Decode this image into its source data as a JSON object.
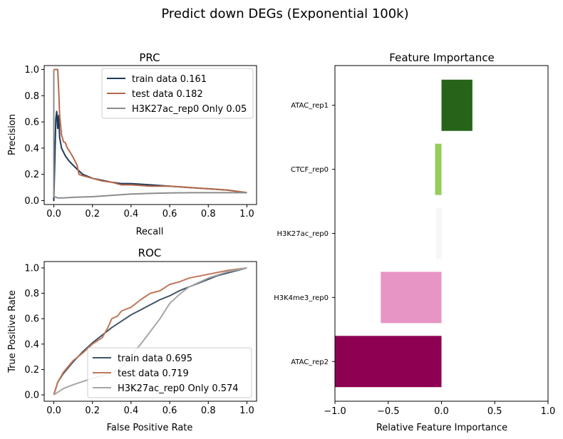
{
  "suptitle": "Predict down DEGs (Exponential 100k)",
  "chart_data": [
    {
      "type": "line",
      "title": "PRC",
      "xlabel": "Recall",
      "ylabel": "Precision",
      "xlim": [
        -0.05,
        1.05
      ],
      "ylim": [
        -0.03,
        1.03
      ],
      "xticks": [
        0.0,
        0.2,
        0.4,
        0.6,
        0.8,
        1.0
      ],
      "xtick_labels": [
        "0.0",
        "0.2",
        "0.4",
        "0.6",
        "0.8",
        "1.0"
      ],
      "yticks": [
        0.0,
        0.2,
        0.4,
        0.6,
        0.8,
        1.0
      ],
      "ytick_labels": [
        "0.0",
        "0.2",
        "0.4",
        "0.6",
        "0.8",
        "1.0"
      ],
      "legend_position": "upper-right",
      "grid": false,
      "series": [
        {
          "name": "train data 0.161",
          "color": "#1f3a5a",
          "x": [
            0.0,
            0.0,
            0.005,
            0.01,
            0.015,
            0.02,
            0.025,
            0.03,
            0.04,
            0.05,
            0.06,
            0.08,
            0.1,
            0.12,
            0.15,
            0.2,
            0.25,
            0.3,
            0.35,
            0.4,
            0.5,
            0.6,
            0.7,
            0.8,
            0.9,
            1.0
          ],
          "y": [
            1.0,
            0.0,
            0.3,
            0.62,
            0.68,
            0.55,
            0.65,
            0.48,
            0.4,
            0.37,
            0.34,
            0.3,
            0.27,
            0.24,
            0.2,
            0.17,
            0.155,
            0.14,
            0.13,
            0.13,
            0.12,
            0.11,
            0.1,
            0.09,
            0.08,
            0.06
          ]
        },
        {
          "name": "test data 0.182",
          "color": "#b5694a",
          "x": [
            0.0,
            0.0,
            0.005,
            0.01,
            0.02,
            0.025,
            0.03,
            0.04,
            0.05,
            0.06,
            0.07,
            0.08,
            0.1,
            0.12,
            0.13,
            0.15,
            0.2,
            0.25,
            0.3,
            0.35,
            0.4,
            0.5,
            0.6,
            0.7,
            0.8,
            0.9,
            1.0
          ],
          "y": [
            1.0,
            1.0,
            1.0,
            1.0,
            1.0,
            0.85,
            0.65,
            0.5,
            0.45,
            0.44,
            0.4,
            0.38,
            0.33,
            0.27,
            0.2,
            0.19,
            0.17,
            0.15,
            0.14,
            0.12,
            0.12,
            0.11,
            0.11,
            0.1,
            0.09,
            0.08,
            0.06
          ]
        },
        {
          "name": "H3K27ac_rep0 Only 0.05",
          "color": "#8c8c8c",
          "x": [
            0.0,
            0.0,
            0.005,
            0.02,
            0.05,
            0.1,
            0.2,
            0.3,
            0.4,
            0.5,
            0.6,
            0.7,
            0.8,
            0.9,
            1.0
          ],
          "y": [
            1.0,
            0.03,
            0.03,
            0.02,
            0.02,
            0.025,
            0.03,
            0.04,
            0.05,
            0.055,
            0.058,
            0.06,
            0.06,
            0.06,
            0.06
          ]
        }
      ]
    },
    {
      "type": "line",
      "title": "ROC",
      "xlabel": "False Positive Rate",
      "ylabel": "True Positive Rate",
      "xlim": [
        -0.05,
        1.05
      ],
      "ylim": [
        -0.05,
        1.05
      ],
      "xticks": [
        0.0,
        0.2,
        0.4,
        0.6,
        0.8,
        1.0
      ],
      "xtick_labels": [
        "0.0",
        "0.2",
        "0.4",
        "0.6",
        "0.8",
        "1.0"
      ],
      "yticks": [
        0.0,
        0.2,
        0.4,
        0.6,
        0.8,
        1.0
      ],
      "ytick_labels": [
        "0.0",
        "0.2",
        "0.4",
        "0.6",
        "0.8",
        "1.0"
      ],
      "legend_position": "lower-right",
      "grid": false,
      "series": [
        {
          "name": "train data 0.695",
          "color": "#3f5566",
          "x": [
            0.0,
            0.02,
            0.05,
            0.1,
            0.15,
            0.2,
            0.25,
            0.3,
            0.35,
            0.4,
            0.45,
            0.5,
            0.55,
            0.6,
            0.65,
            0.7,
            0.75,
            0.8,
            0.85,
            0.9,
            0.95,
            1.0
          ],
          "y": [
            0.0,
            0.1,
            0.17,
            0.26,
            0.34,
            0.41,
            0.47,
            0.53,
            0.58,
            0.63,
            0.67,
            0.71,
            0.75,
            0.78,
            0.82,
            0.85,
            0.88,
            0.91,
            0.94,
            0.96,
            0.98,
            1.0
          ]
        },
        {
          "name": "test data 0.719",
          "color": "#c0785a",
          "x": [
            0.0,
            0.02,
            0.05,
            0.1,
            0.15,
            0.2,
            0.25,
            0.28,
            0.3,
            0.33,
            0.35,
            0.4,
            0.45,
            0.5,
            0.55,
            0.6,
            0.65,
            0.7,
            0.8,
            0.9,
            1.0
          ],
          "y": [
            0.0,
            0.1,
            0.18,
            0.27,
            0.33,
            0.4,
            0.45,
            0.53,
            0.6,
            0.62,
            0.66,
            0.69,
            0.75,
            0.8,
            0.82,
            0.87,
            0.89,
            0.92,
            0.95,
            0.98,
            1.0
          ]
        },
        {
          "name": "H3K27ac_rep0 Only 0.574",
          "color": "#a6a6a6",
          "x": [
            0.0,
            0.05,
            0.1,
            0.2,
            0.3,
            0.35,
            0.4,
            0.45,
            0.5,
            0.55,
            0.6,
            0.65,
            0.7,
            0.8,
            0.9,
            1.0
          ],
          "y": [
            0.0,
            0.05,
            0.08,
            0.13,
            0.17,
            0.22,
            0.31,
            0.4,
            0.5,
            0.6,
            0.72,
            0.79,
            0.85,
            0.92,
            0.97,
            1.0
          ]
        }
      ]
    },
    {
      "type": "bar",
      "orientation": "horizontal",
      "title": "Feature Importance",
      "xlabel": "Relative Feature Importance",
      "ylabel": "",
      "xlim": [
        -1.0,
        1.0
      ],
      "xticks": [
        -1.0,
        -0.5,
        0.0,
        0.5,
        1.0
      ],
      "xtick_labels": [
        "−1.0",
        "−0.5",
        "0.0",
        "0.5",
        "1.0"
      ],
      "categories": [
        "ATAC_rep1",
        "CTCF_rep0",
        "H3K27ac_rep0",
        "H3K4me3_rep0",
        "ATAC_rep2"
      ],
      "values": [
        0.29,
        -0.06,
        -0.05,
        -0.57,
        -1.0
      ],
      "colors": [
        "#276419",
        "#97cc5a",
        "#f6f6f6",
        "#e795c5",
        "#8e0152"
      ],
      "grid": false
    }
  ]
}
